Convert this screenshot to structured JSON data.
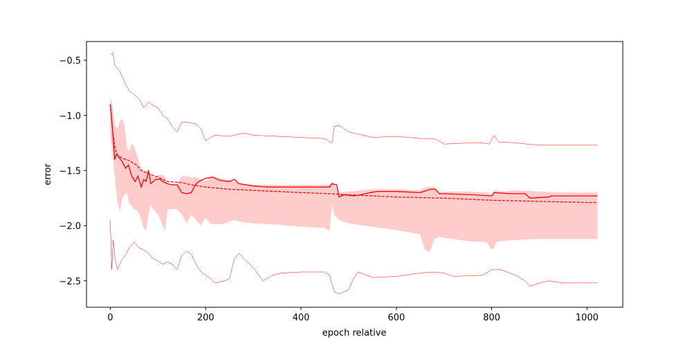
{
  "chart_data": {
    "type": "line",
    "title": "",
    "xlabel": "epoch relative",
    "ylabel": "error",
    "xlim": [
      -50,
      1075
    ],
    "ylim": [
      -2.74,
      -0.33
    ],
    "xticks": [
      0,
      200,
      400,
      600,
      800,
      1000
    ],
    "yticks": [
      -2.5,
      -2.0,
      -1.5,
      -1.0,
      -0.5
    ],
    "ytick_labels": [
      "−2.5",
      "−2.0",
      "−1.5",
      "−1.0",
      "−0.5"
    ],
    "grid": false,
    "legend": "none",
    "colors": {
      "line": "#ff0000",
      "band": "#ffcccc"
    },
    "series": [
      {
        "style": "solid",
        "points": [
          [
            0,
            -0.9
          ],
          [
            3,
            -1.05
          ],
          [
            6,
            -1.2
          ],
          [
            9,
            -1.4
          ],
          [
            13,
            -1.35
          ],
          [
            18,
            -1.38
          ],
          [
            25,
            -1.42
          ],
          [
            32,
            -1.48
          ],
          [
            38,
            -1.45
          ],
          [
            45,
            -1.55
          ],
          [
            52,
            -1.6
          ],
          [
            58,
            -1.55
          ],
          [
            65,
            -1.65
          ],
          [
            70,
            -1.58
          ],
          [
            75,
            -1.6
          ],
          [
            80,
            -1.5
          ],
          [
            85,
            -1.62
          ],
          [
            95,
            -1.58
          ],
          [
            105,
            -1.58
          ],
          [
            110,
            -1.6
          ],
          [
            120,
            -1.62
          ],
          [
            130,
            -1.63
          ],
          [
            140,
            -1.63
          ],
          [
            150,
            -1.7
          ],
          [
            160,
            -1.71
          ],
          [
            170,
            -1.7
          ],
          [
            178,
            -1.63
          ],
          [
            185,
            -1.6
          ],
          [
            200,
            -1.57
          ],
          [
            215,
            -1.56
          ],
          [
            230,
            -1.59
          ],
          [
            250,
            -1.6
          ],
          [
            260,
            -1.58
          ],
          [
            270,
            -1.62
          ],
          [
            300,
            -1.64
          ],
          [
            330,
            -1.65
          ],
          [
            400,
            -1.65
          ],
          [
            460,
            -1.65
          ],
          [
            465,
            -1.62
          ],
          [
            475,
            -1.63
          ],
          [
            480,
            -1.74
          ],
          [
            490,
            -1.72
          ],
          [
            510,
            -1.73
          ],
          [
            525,
            -1.72
          ],
          [
            545,
            -1.7
          ],
          [
            560,
            -1.69
          ],
          [
            600,
            -1.69
          ],
          [
            650,
            -1.7
          ],
          [
            672,
            -1.67
          ],
          [
            682,
            -1.67
          ],
          [
            690,
            -1.71
          ],
          [
            700,
            -1.71
          ],
          [
            760,
            -1.72
          ],
          [
            800,
            -1.73
          ],
          [
            805,
            -1.7
          ],
          [
            840,
            -1.71
          ],
          [
            870,
            -1.71
          ],
          [
            880,
            -1.75
          ],
          [
            920,
            -1.74
          ],
          [
            925,
            -1.73
          ],
          [
            1000,
            -1.73
          ],
          [
            1022,
            -1.73
          ]
        ]
      },
      {
        "style": "dashed",
        "points": [
          [
            0,
            -0.9
          ],
          [
            5,
            -1.15
          ],
          [
            10,
            -1.3
          ],
          [
            15,
            -1.36
          ],
          [
            25,
            -1.39
          ],
          [
            40,
            -1.41
          ],
          [
            55,
            -1.45
          ],
          [
            65,
            -1.5
          ],
          [
            80,
            -1.53
          ],
          [
            100,
            -1.56
          ],
          [
            120,
            -1.6
          ],
          [
            150,
            -1.61
          ],
          [
            170,
            -1.63
          ],
          [
            200,
            -1.65
          ],
          [
            250,
            -1.67
          ],
          [
            300,
            -1.68
          ],
          [
            400,
            -1.7
          ],
          [
            460,
            -1.71
          ],
          [
            500,
            -1.72
          ],
          [
            600,
            -1.74
          ],
          [
            700,
            -1.75
          ],
          [
            800,
            -1.77
          ],
          [
            900,
            -1.78
          ],
          [
            1000,
            -1.79
          ],
          [
            1022,
            -1.79
          ]
        ]
      }
    ],
    "band": {
      "x": [
        0,
        5,
        10,
        15,
        20,
        25,
        30,
        35,
        40,
        45,
        50,
        55,
        60,
        65,
        70,
        75,
        80,
        85,
        90,
        100,
        110,
        115,
        120,
        130,
        140,
        150,
        160,
        170,
        180,
        190,
        200,
        210,
        220,
        240,
        260,
        280,
        300,
        350,
        400,
        450,
        460,
        465,
        470,
        480,
        500,
        550,
        600,
        650,
        660,
        670,
        680,
        690,
        700,
        750,
        790,
        800,
        805,
        810,
        820,
        850,
        900,
        950,
        1000,
        1022
      ],
      "upper": [
        -0.82,
        -0.93,
        -1.1,
        -1.12,
        -1.05,
        -1.03,
        -1.09,
        -1.3,
        -1.32,
        -1.25,
        -1.28,
        -1.35,
        -1.42,
        -1.48,
        -1.5,
        -1.51,
        -1.49,
        -1.53,
        -1.56,
        -1.54,
        -1.54,
        -1.56,
        -1.62,
        -1.63,
        -1.62,
        -1.55,
        -1.55,
        -1.56,
        -1.56,
        -1.58,
        -1.6,
        -1.55,
        -1.56,
        -1.58,
        -1.6,
        -1.62,
        -1.63,
        -1.63,
        -1.63,
        -1.63,
        -1.63,
        -1.6,
        -1.62,
        -1.7,
        -1.69,
        -1.67,
        -1.67,
        -1.68,
        -1.65,
        -1.65,
        -1.65,
        -1.7,
        -1.69,
        -1.69,
        -1.7,
        -1.72,
        -1.68,
        -1.68,
        -1.69,
        -1.68,
        -1.69,
        -1.7,
        -1.7,
        -1.7
      ],
      "lower": [
        -1.2,
        -1.35,
        -1.6,
        -1.78,
        -1.88,
        -1.75,
        -1.72,
        -1.7,
        -1.8,
        -1.82,
        -1.85,
        -1.86,
        -1.89,
        -1.95,
        -2.02,
        -2.05,
        -1.9,
        -1.8,
        -1.85,
        -1.9,
        -2.0,
        -2.05,
        -1.85,
        -1.85,
        -1.85,
        -1.9,
        -1.98,
        -1.9,
        -1.95,
        -2.0,
        -1.93,
        -1.98,
        -1.99,
        -1.98,
        -1.95,
        -1.97,
        -1.98,
        -1.99,
        -2.01,
        -2.02,
        -2.05,
        -1.8,
        -1.9,
        -1.95,
        -1.98,
        -2.01,
        -2.04,
        -2.08,
        -2.22,
        -2.24,
        -2.12,
        -2.1,
        -2.11,
        -2.14,
        -2.15,
        -2.22,
        -2.2,
        -2.15,
        -2.14,
        -2.13,
        -2.12,
        -2.12,
        -2.12,
        -2.12
      ]
    },
    "envelope_upper": {
      "points": [
        [
          0,
          -0.45
        ],
        [
          5,
          -0.43
        ],
        [
          10,
          -0.55
        ],
        [
          20,
          -0.6
        ],
        [
          30,
          -0.7
        ],
        [
          40,
          -0.78
        ],
        [
          50,
          -0.81
        ],
        [
          60,
          -0.85
        ],
        [
          70,
          -0.93
        ],
        [
          80,
          -0.88
        ],
        [
          90,
          -0.91
        ],
        [
          100,
          -0.93
        ],
        [
          110,
          -1.0
        ],
        [
          120,
          -1.03
        ],
        [
          130,
          -1.1
        ],
        [
          140,
          -1.15
        ],
        [
          150,
          -1.06
        ],
        [
          160,
          -1.06
        ],
        [
          170,
          -1.07
        ],
        [
          180,
          -1.08
        ],
        [
          190,
          -1.12
        ],
        [
          200,
          -1.23
        ],
        [
          210,
          -1.2
        ],
        [
          220,
          -1.18
        ],
        [
          250,
          -1.19
        ],
        [
          280,
          -1.16
        ],
        [
          300,
          -1.18
        ],
        [
          350,
          -1.19
        ],
        [
          400,
          -1.2
        ],
        [
          450,
          -1.21
        ],
        [
          465,
          -1.25
        ],
        [
          470,
          -1.1
        ],
        [
          480,
          -1.09
        ],
        [
          490,
          -1.12
        ],
        [
          500,
          -1.15
        ],
        [
          520,
          -1.17
        ],
        [
          550,
          -1.2
        ],
        [
          600,
          -1.19
        ],
        [
          650,
          -1.21
        ],
        [
          680,
          -1.21
        ],
        [
          700,
          -1.26
        ],
        [
          750,
          -1.25
        ],
        [
          780,
          -1.25
        ],
        [
          795,
          -1.26
        ],
        [
          805,
          -1.18
        ],
        [
          815,
          -1.24
        ],
        [
          850,
          -1.25
        ],
        [
          900,
          -1.27
        ],
        [
          950,
          -1.27
        ],
        [
          1000,
          -1.27
        ],
        [
          1022,
          -1.27
        ]
      ]
    },
    "envelope_lower": {
      "points": [
        [
          0,
          -1.95
        ],
        [
          3,
          -2.4
        ],
        [
          6,
          -2.13
        ],
        [
          10,
          -2.3
        ],
        [
          15,
          -2.4
        ],
        [
          20,
          -2.35
        ],
        [
          25,
          -2.3
        ],
        [
          30,
          -2.28
        ],
        [
          40,
          -2.2
        ],
        [
          50,
          -2.15
        ],
        [
          60,
          -2.2
        ],
        [
          70,
          -2.22
        ],
        [
          80,
          -2.25
        ],
        [
          90,
          -2.3
        ],
        [
          100,
          -2.32
        ],
        [
          110,
          -2.35
        ],
        [
          120,
          -2.33
        ],
        [
          130,
          -2.35
        ],
        [
          140,
          -2.4
        ],
        [
          150,
          -2.27
        ],
        [
          160,
          -2.23
        ],
        [
          170,
          -2.26
        ],
        [
          180,
          -2.35
        ],
        [
          190,
          -2.42
        ],
        [
          200,
          -2.45
        ],
        [
          210,
          -2.48
        ],
        [
          220,
          -2.52
        ],
        [
          240,
          -2.5
        ],
        [
          250,
          -2.48
        ],
        [
          260,
          -2.3
        ],
        [
          270,
          -2.25
        ],
        [
          280,
          -2.3
        ],
        [
          300,
          -2.38
        ],
        [
          320,
          -2.5
        ],
        [
          340,
          -2.45
        ],
        [
          360,
          -2.43
        ],
        [
          400,
          -2.42
        ],
        [
          450,
          -2.42
        ],
        [
          460,
          -2.45
        ],
        [
          470,
          -2.6
        ],
        [
          480,
          -2.62
        ],
        [
          490,
          -2.6
        ],
        [
          500,
          -2.58
        ],
        [
          510,
          -2.48
        ],
        [
          520,
          -2.42
        ],
        [
          550,
          -2.47
        ],
        [
          600,
          -2.46
        ],
        [
          650,
          -2.43
        ],
        [
          680,
          -2.42
        ],
        [
          700,
          -2.43
        ],
        [
          720,
          -2.46
        ],
        [
          780,
          -2.45
        ],
        [
          800,
          -2.4
        ],
        [
          820,
          -2.4
        ],
        [
          850,
          -2.45
        ],
        [
          870,
          -2.5
        ],
        [
          880,
          -2.55
        ],
        [
          900,
          -2.52
        ],
        [
          920,
          -2.5
        ],
        [
          950,
          -2.52
        ],
        [
          1000,
          -2.52
        ],
        [
          1022,
          -2.52
        ]
      ]
    }
  }
}
